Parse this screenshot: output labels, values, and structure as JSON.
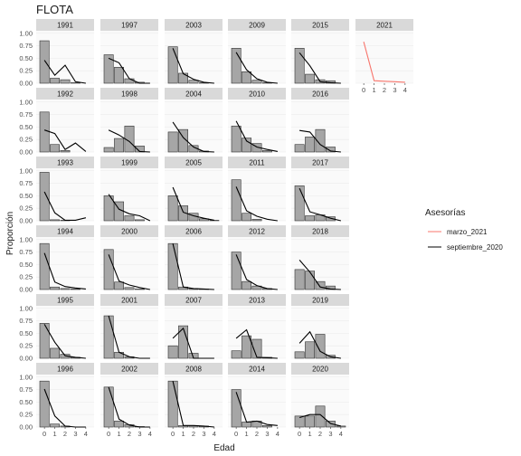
{
  "chart_data": {
    "type": "bar",
    "title": "FLOTA",
    "xlabel": "Edad",
    "ylabel": "Proporción",
    "x_categories": [
      "0",
      "1",
      "2",
      "3",
      "4"
    ],
    "y_ticks": [
      "0.00",
      "0.25",
      "0.50",
      "0.75",
      "1.00"
    ],
    "ylim": [
      0,
      1.05
    ],
    "facet_layout": "6 x 6 grid, years by column",
    "legend": {
      "title": "Asesorías",
      "position": "right",
      "entries": [
        {
          "name": "marzo_2021",
          "color": "#f8766d"
        },
        {
          "name": "septiembre_2020",
          "color": "#000000"
        }
      ]
    },
    "colors": {
      "bar_fill": "#a6a6a6",
      "bar_stroke": "#333333",
      "strip": "#d9d9d9",
      "panel_bg": "#fafafa",
      "grid": "#ebebeb"
    },
    "facets": [
      {
        "year": "1991",
        "bars": [
          0.85,
          0.1,
          0.07,
          0.01,
          0.0
        ],
        "series": [
          {
            "name": "septiembre_2020",
            "values": [
              0.46,
              0.16,
              0.36,
              0.03,
              0.0
            ]
          }
        ]
      },
      {
        "year": "1992",
        "bars": [
          0.8,
          0.15,
          0.03,
          0.0,
          0.0
        ],
        "series": [
          {
            "name": "septiembre_2020",
            "values": [
              0.44,
              0.37,
              0.05,
              0.18,
              0.01
            ]
          }
        ]
      },
      {
        "year": "1993",
        "bars": [
          0.97,
          0.02,
          0.01,
          0.0,
          0.0
        ],
        "series": [
          {
            "name": "septiembre_2020",
            "values": [
              0.58,
              0.16,
              0.01,
              0.01,
              0.06
            ]
          }
        ]
      },
      {
        "year": "1994",
        "bars": [
          0.92,
          0.05,
          0.02,
          0.01,
          0.0
        ],
        "series": [
          {
            "name": "septiembre_2020",
            "values": [
              0.73,
              0.15,
              0.06,
              0.03,
              0.01
            ]
          }
        ]
      },
      {
        "year": "1995",
        "bars": [
          0.7,
          0.2,
          0.08,
          0.02,
          0.0
        ],
        "series": [
          {
            "name": "septiembre_2020",
            "values": [
              0.68,
              0.32,
              0.05,
              0.02,
              0.0
            ]
          }
        ]
      },
      {
        "year": "1996",
        "bars": [
          0.92,
          0.06,
          0.02,
          0.0,
          0.0
        ],
        "series": [
          {
            "name": "septiembre_2020",
            "values": [
              0.76,
              0.22,
              0.02,
              0.0,
              0.0
            ]
          }
        ]
      },
      {
        "year": "1997",
        "bars": [
          0.57,
          0.32,
          0.09,
          0.02,
          0.0
        ],
        "series": [
          {
            "name": "septiembre_2020",
            "values": [
              0.5,
              0.41,
              0.09,
              0.0,
              0.0
            ]
          }
        ]
      },
      {
        "year": "1998",
        "bars": [
          0.09,
          0.27,
          0.52,
          0.12,
          0.0
        ],
        "series": [
          {
            "name": "septiembre_2020",
            "values": [
              0.44,
              0.34,
              0.21,
              0.01,
              0.0
            ]
          }
        ]
      },
      {
        "year": "1999",
        "bars": [
          0.5,
          0.38,
          0.1,
          0.02,
          0.0
        ],
        "series": [
          {
            "name": "septiembre_2020",
            "values": [
              0.53,
              0.23,
              0.14,
              0.1,
              0.0
            ]
          }
        ]
      },
      {
        "year": "2000",
        "bars": [
          0.8,
          0.15,
          0.04,
          0.01,
          0.0
        ],
        "series": [
          {
            "name": "septiembre_2020",
            "values": [
              0.7,
              0.17,
              0.09,
              0.04,
              0.0
            ]
          }
        ]
      },
      {
        "year": "2001",
        "bars": [
          0.85,
          0.12,
          0.03,
          0.0,
          0.0
        ],
        "series": [
          {
            "name": "septiembre_2020",
            "values": [
              0.85,
              0.12,
              0.03,
              0.0,
              0.0
            ]
          }
        ]
      },
      {
        "year": "2002",
        "bars": [
          0.8,
          0.12,
          0.05,
          0.01,
          0.0
        ],
        "series": [
          {
            "name": "septiembre_2020",
            "values": [
              0.8,
              0.16,
              0.04,
              0.0,
              0.0
            ]
          }
        ]
      },
      {
        "year": "2003",
        "bars": [
          0.73,
          0.2,
          0.06,
          0.01,
          0.0
        ],
        "series": [
          {
            "name": "septiembre_2020",
            "values": [
              0.7,
              0.19,
              0.08,
              0.02,
              0.0
            ]
          }
        ]
      },
      {
        "year": "2004",
        "bars": [
          0.4,
          0.45,
          0.13,
          0.02,
          0.0
        ],
        "series": [
          {
            "name": "septiembre_2020",
            "values": [
              0.6,
              0.29,
              0.1,
              0.01,
              0.0
            ]
          }
        ]
      },
      {
        "year": "2005",
        "bars": [
          0.5,
          0.3,
          0.15,
          0.04,
          0.01
        ],
        "series": [
          {
            "name": "septiembre_2020",
            "values": [
              0.67,
              0.17,
              0.1,
              0.05,
              0.01
            ]
          }
        ]
      },
      {
        "year": "2006",
        "bars": [
          0.92,
          0.05,
          0.02,
          0.01,
          0.0
        ],
        "series": [
          {
            "name": "septiembre_2020",
            "values": [
              0.92,
              0.05,
              0.02,
              0.01,
              0.0
            ]
          }
        ]
      },
      {
        "year": "2007",
        "bars": [
          0.25,
          0.65,
          0.1,
          0.0,
          0.0
        ],
        "series": [
          {
            "name": "septiembre_2020",
            "values": [
              0.4,
              0.6,
              0.0,
              0.0,
              0.0
            ]
          }
        ]
      },
      {
        "year": "2008",
        "bars": [
          0.92,
          0.03,
          0.03,
          0.02,
          0.0
        ],
        "series": [
          {
            "name": "septiembre_2020",
            "values": [
              0.92,
              0.03,
              0.03,
              0.02,
              0.0
            ]
          }
        ]
      },
      {
        "year": "2009",
        "bars": [
          0.7,
          0.23,
          0.06,
          0.01,
          0.0
        ],
        "series": [
          {
            "name": "septiembre_2020",
            "values": [
              0.62,
              0.27,
              0.09,
              0.02,
              0.0
            ]
          }
        ]
      },
      {
        "year": "2010",
        "bars": [
          0.52,
          0.28,
          0.17,
          0.03,
          0.0
        ],
        "series": [
          {
            "name": "septiembre_2020",
            "values": [
              0.62,
              0.22,
              0.1,
              0.05,
              0.01
            ]
          }
        ]
      },
      {
        "year": "2011",
        "bars": [
          0.82,
          0.15,
          0.03,
          0.0,
          0.0
        ],
        "series": [
          {
            "name": "septiembre_2020",
            "values": [
              0.68,
              0.2,
              0.09,
              0.03,
              0.0
            ]
          }
        ]
      },
      {
        "year": "2012",
        "bars": [
          0.75,
          0.16,
          0.07,
          0.02,
          0.0
        ],
        "series": [
          {
            "name": "septiembre_2020",
            "values": [
              0.7,
              0.2,
              0.08,
              0.02,
              0.0
            ]
          }
        ]
      },
      {
        "year": "2013",
        "bars": [
          0.15,
          0.45,
          0.38,
          0.02,
          0.0
        ],
        "series": [
          {
            "name": "septiembre_2020",
            "values": [
              0.4,
              0.57,
              0.02,
              0.01,
              0.0
            ]
          }
        ]
      },
      {
        "year": "2014",
        "bars": [
          0.75,
          0.1,
          0.12,
          0.03,
          0.0
        ],
        "series": [
          {
            "name": "septiembre_2020",
            "values": [
              0.7,
              0.1,
              0.12,
              0.05,
              0.03
            ]
          }
        ]
      },
      {
        "year": "2015",
        "bars": [
          0.7,
          0.18,
          0.07,
          0.05,
          0.0
        ],
        "series": [
          {
            "name": "septiembre_2020",
            "values": [
              0.61,
              0.35,
              0.03,
              0.01,
              0.0
            ]
          }
        ]
      },
      {
        "year": "2016",
        "bars": [
          0.15,
          0.3,
          0.45,
          0.1,
          0.0
        ],
        "series": [
          {
            "name": "septiembre_2020",
            "values": [
              0.43,
              0.4,
              0.15,
              0.02,
              0.0
            ]
          }
        ]
      },
      {
        "year": "2017",
        "bars": [
          0.7,
          0.1,
          0.12,
          0.08,
          0.0
        ],
        "series": [
          {
            "name": "septiembre_2020",
            "values": [
              0.65,
              0.18,
              0.12,
              0.05,
              0.0
            ]
          }
        ]
      },
      {
        "year": "2018",
        "bars": [
          0.4,
          0.37,
          0.16,
          0.07,
          0.0
        ],
        "series": [
          {
            "name": "septiembre_2020",
            "values": [
              0.59,
              0.35,
              0.05,
              0.01,
              0.0
            ]
          }
        ]
      },
      {
        "year": "2019",
        "bars": [
          0.13,
          0.33,
          0.48,
          0.06,
          0.0
        ],
        "series": [
          {
            "name": "septiembre_2020",
            "values": [
              0.3,
              0.53,
              0.14,
              0.03,
              0.0
            ]
          }
        ]
      },
      {
        "year": "2020",
        "bars": [
          0.22,
          0.22,
          0.42,
          0.12,
          0.02
        ],
        "series": [
          {
            "name": "septiembre_2020",
            "values": [
              0.19,
              0.25,
              0.25,
              0.07,
              0.02
            ]
          }
        ]
      },
      {
        "year": "2021",
        "bars": [],
        "series": [
          {
            "name": "marzo_2021",
            "values": [
              0.83,
              0.05,
              0.04,
              0.03,
              0.02
            ]
          }
        ],
        "show_x_ticks": true
      }
    ]
  }
}
